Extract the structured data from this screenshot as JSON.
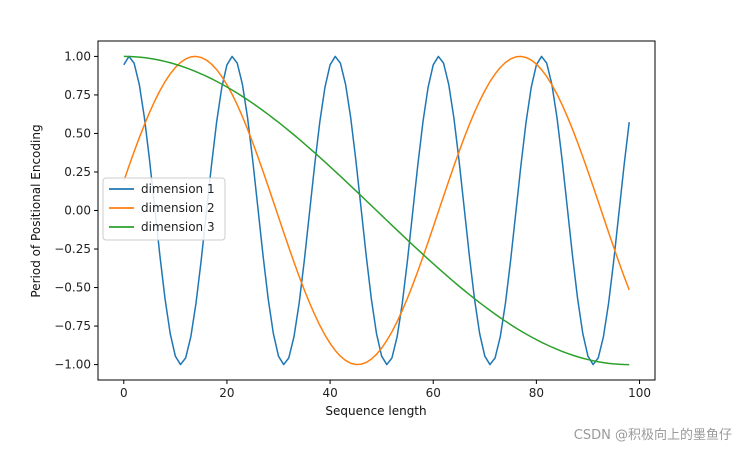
{
  "chart_data": {
    "type": "line",
    "xlabel": "Sequence length",
    "ylabel": "Period of Positional Encoding",
    "xlim": [
      -5,
      103
    ],
    "ylim": [
      -1.1,
      1.1
    ],
    "xticks": [
      0,
      20,
      40,
      60,
      80,
      100
    ],
    "yticks": [
      -1.0,
      -0.75,
      -0.5,
      -0.25,
      0.0,
      0.25,
      0.5,
      0.75,
      1.0
    ],
    "xtick_labels": [
      "0",
      "20",
      "40",
      "60",
      "80",
      "100"
    ],
    "ytick_labels": [
      "−1.00",
      "−0.75",
      "−0.50",
      "−0.25",
      "0.00",
      "0.25",
      "0.50",
      "0.75",
      "1.00"
    ],
    "grid": false,
    "legend_position": "center-left",
    "series": [
      {
        "name": "dimension 1",
        "color": "#1f77b4",
        "x_start": 0,
        "x_end": 98,
        "x_step": 1,
        "curve": "sin",
        "amplitude": 1.0,
        "period": 20,
        "phase_deg": 71,
        "n_points": 99
      },
      {
        "name": "dimension 2",
        "color": "#ff7f0e",
        "x_start": 0,
        "x_end": 98,
        "x_step": 1,
        "curve": "sin",
        "amplitude": 1.0,
        "period": 63,
        "phase_deg": 11,
        "n_points": 99
      },
      {
        "name": "dimension 3",
        "color": "#2ca02c",
        "x_start": 0,
        "x_end": 98,
        "x_step": 1,
        "curve": "cos",
        "amplitude": 1.0,
        "period": 196,
        "phase_deg": 0,
        "n_points": 99
      }
    ]
  },
  "watermark": "CSDN @积极向上的墨鱼仔"
}
